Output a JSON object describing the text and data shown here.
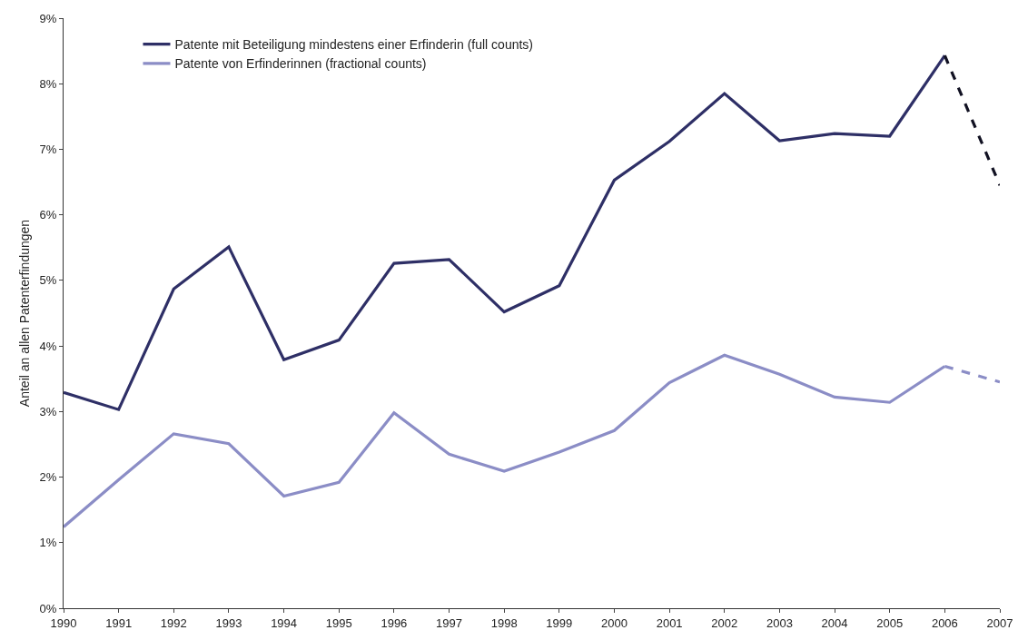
{
  "chart_data": {
    "type": "line",
    "ylabel": "Anteil an allen Patenterfindungen",
    "categories": [
      "1990",
      "1991",
      "1992",
      "1993",
      "1994",
      "1995",
      "1996",
      "1997",
      "1998",
      "1999",
      "2000",
      "2001",
      "2002",
      "2003",
      "2004",
      "2005",
      "2006",
      "2007"
    ],
    "series": [
      {
        "name": "Patente mit Beteiligung mindestens einer Erfinderin (full counts)",
        "color": "#2e2f66",
        "line_style": "solid",
        "values": [
          3.29,
          3.03,
          4.87,
          5.51,
          3.79,
          4.09,
          5.26,
          5.32,
          4.52,
          4.92,
          6.53,
          7.12,
          7.85,
          7.13,
          7.24,
          7.2,
          8.43,
          null
        ]
      },
      {
        "color": "#111122",
        "line_style": "dashed",
        "values": [
          null,
          null,
          null,
          null,
          null,
          null,
          null,
          null,
          null,
          null,
          null,
          null,
          null,
          null,
          null,
          null,
          8.43,
          6.45
        ]
      },
      {
        "name": "Patente von Erfinderinnen (fractional counts)",
        "color": "#8b8dc6",
        "line_style": "solid",
        "values": [
          1.24,
          1.96,
          2.66,
          2.51,
          1.71,
          1.92,
          2.98,
          2.35,
          2.09,
          2.38,
          2.71,
          3.44,
          3.86,
          3.57,
          3.22,
          3.14,
          3.69,
          null
        ]
      },
      {
        "color": "#8b8dc6",
        "line_style": "dashed",
        "values": [
          null,
          null,
          null,
          null,
          null,
          null,
          null,
          null,
          null,
          null,
          null,
          null,
          null,
          null,
          null,
          null,
          3.69,
          3.45
        ]
      }
    ],
    "ylim": [
      0,
      9
    ],
    "yticks": [
      {
        "value": 0,
        "label": "0%"
      },
      {
        "value": 1,
        "label": "1%"
      },
      {
        "value": 2,
        "label": "2%"
      },
      {
        "value": 3,
        "label": "3%"
      },
      {
        "value": 4,
        "label": "4%"
      },
      {
        "value": 5,
        "label": "5%"
      },
      {
        "value": 6,
        "label": "6%"
      },
      {
        "value": 7,
        "label": "7%"
      },
      {
        "value": 8,
        "label": "8%"
      },
      {
        "value": 9,
        "label": "9%"
      }
    ],
    "grid": false,
    "legend": "top left",
    "marker": "none"
  }
}
